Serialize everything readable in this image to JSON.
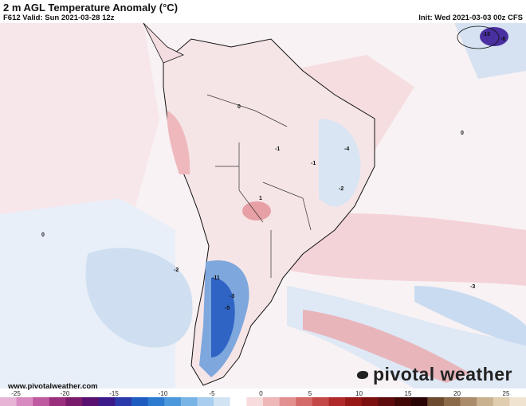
{
  "header": {
    "title": "2 m AGL Temperature Anomaly (°C)",
    "valid": "F612 Valid: Sun 2021-03-28 12z",
    "init": "Init: Wed 2021-03-03 00z CFS"
  },
  "footer": {
    "website": "www.pivotalweather.com",
    "brand": "pivotal weather"
  },
  "colorbar": {
    "labels": [
      "-25",
      "-20",
      "-15",
      "-10",
      "-5",
      "0",
      "5",
      "10",
      "15",
      "20",
      "25"
    ],
    "colors": [
      "#e8b4d6",
      "#d88ac0",
      "#c05aa0",
      "#9a2f7e",
      "#7a1a6a",
      "#5a1070",
      "#3c1a8a",
      "#2a3aa8",
      "#1f5cc0",
      "#2c7bd0",
      "#4c98dc",
      "#79b4e6",
      "#a8cdee",
      "#d2e4f4",
      "#ffffff",
      "#f6dcdc",
      "#eeb8b8",
      "#e29090",
      "#d46a6a",
      "#c44848",
      "#b02a2a",
      "#981818",
      "#7c1010",
      "#5e0c0c",
      "#420808",
      "#2a0505",
      "#6b4a2e",
      "#8b6a48",
      "#ab8c6a",
      "#c9b08e",
      "#e0ccae",
      "#f0e4d0"
    ]
  },
  "map": {
    "anomaly_labels": [
      "0",
      "-1",
      "-2",
      "-3",
      "-4",
      "-5",
      "1",
      "-6",
      "-11",
      "-10"
    ],
    "colors": {
      "ocean_warm": "#f3d3d6",
      "ocean_cool": "#cfe0f1",
      "cold_core": "#2f63c4",
      "warm_core": "#e7a0a6",
      "coast": "#111111",
      "border": "#333333"
    }
  }
}
